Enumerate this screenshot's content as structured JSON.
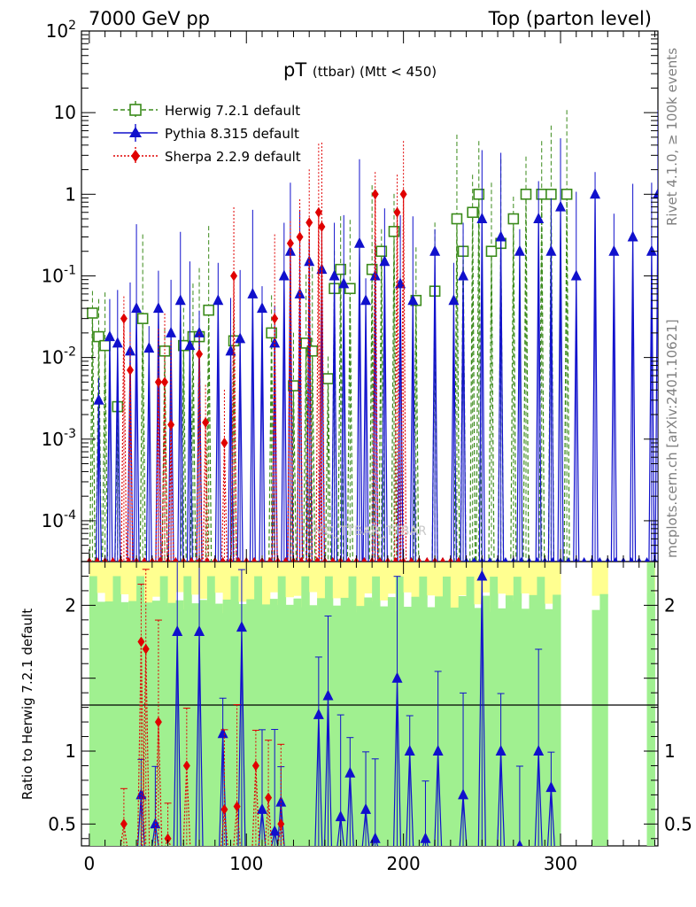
{
  "header": {
    "left": "7000 GeV pp",
    "right": "Top (parton level)"
  },
  "title": {
    "main": "pT",
    "sub": "(ttbar) (Mtt < 450)"
  },
  "side_labels": {
    "rivet": "Rivet 4.1.0, ≥ 100k events",
    "mcplots": "mcplots.cern.ch [arXiv:2401.10621]"
  },
  "watermark": "MC_TTBAR_TTBAR",
  "legend": [
    {
      "label": "Herwig 7.2.1 default",
      "color": "#3a8a1a"
    },
    {
      "label": "Pythia 8.315 default",
      "color": "#1010cc"
    },
    {
      "label": "Sherpa 2.2.9 default",
      "color": "#e00000"
    }
  ],
  "ratio_ylabel": "Ratio to Herwig 7.2.1 default",
  "chart_data": {
    "type": "line",
    "xlim": [
      -5,
      362
    ],
    "top_ylim_log10": [
      -4.5,
      2
    ],
    "bottom_ylim": [
      0.35,
      2.3
    ],
    "x_ticks": [
      "0",
      "100",
      "200",
      "300"
    ],
    "top_ytick_labels": [
      "10^2",
      "10",
      "1",
      "10^-1",
      "10^-2",
      "10^-3",
      "10^-4"
    ],
    "bottom_ytick_labels": [
      "0.5",
      "1",
      "2"
    ],
    "series": [
      {
        "name": "Herwig 7.2.1 default",
        "color": "#3a8a1a",
        "marker": "open-square",
        "x": [
          2,
          6,
          10,
          18,
          34,
          48,
          60,
          66,
          70,
          76,
          92,
          116,
          130,
          138,
          142,
          152,
          156,
          160,
          166,
          180,
          186,
          194,
          208,
          220,
          234,
          238,
          244,
          248,
          256,
          262,
          270,
          278,
          288,
          294,
          304
        ],
        "y": [
          0.035,
          0.018,
          0.014,
          0.0025,
          0.03,
          0.012,
          0.014,
          0.018,
          0.018,
          0.038,
          0.016,
          0.02,
          0.0045,
          0.015,
          0.012,
          0.0055,
          0.07,
          0.12,
          0.07,
          0.12,
          0.2,
          0.35,
          0.05,
          0.065,
          0.5,
          0.2,
          0.6,
          1.0,
          0.2,
          0.25,
          0.5,
          1.0,
          1.0,
          1.0,
          1.0
        ]
      },
      {
        "name": "Pythia 8.315 default",
        "color": "#1010cc",
        "marker": "filled-triangle",
        "x": [
          6,
          13,
          18,
          26,
          30,
          38,
          44,
          52,
          58,
          64,
          70,
          82,
          90,
          96,
          104,
          110,
          118,
          124,
          128,
          134,
          140,
          148,
          156,
          162,
          172,
          176,
          182,
          188,
          198,
          206,
          220,
          232,
          238,
          250,
          262,
          274,
          286,
          294,
          300,
          310,
          322,
          334,
          346,
          358,
          362
        ],
        "y": [
          0.003,
          0.018,
          0.015,
          0.012,
          0.04,
          0.013,
          0.04,
          0.02,
          0.05,
          0.014,
          0.02,
          0.05,
          0.012,
          0.017,
          0.06,
          0.04,
          0.015,
          0.1,
          0.2,
          0.06,
          0.15,
          0.12,
          0.1,
          0.08,
          0.25,
          0.05,
          0.1,
          0.15,
          0.08,
          0.05,
          0.2,
          0.05,
          0.1,
          0.5,
          0.3,
          0.2,
          0.5,
          0.2,
          0.7,
          0.1,
          1.0,
          0.2,
          0.3,
          0.2,
          1.0
        ]
      },
      {
        "name": "Sherpa 2.2.9 default",
        "color": "#e00000",
        "marker": "filled-diamond",
        "x": [
          22,
          26,
          44,
          48,
          52,
          70,
          74,
          86,
          92,
          118,
          128,
          134,
          140,
          146,
          148,
          182,
          196,
          200
        ],
        "y": [
          0.03,
          0.007,
          0.005,
          0.005,
          0.0015,
          0.011,
          0.0016,
          0.0009,
          0.1,
          0.03,
          0.25,
          0.3,
          0.45,
          0.6,
          0.4,
          1.0,
          0.6,
          1.0
        ]
      }
    ],
    "ratio_series": [
      {
        "name": "Pythia 8.315 default",
        "x": [
          33,
          42,
          56,
          70,
          85,
          97,
          110,
          118,
          122,
          146,
          152,
          160,
          166,
          176,
          182,
          196,
          204,
          214,
          222,
          238,
          250,
          262,
          274,
          286,
          294
        ],
        "y": [
          0.7,
          0.5,
          1.82,
          1.82,
          1.12,
          1.85,
          0.6,
          0.45,
          0.65,
          1.25,
          1.38,
          0.55,
          0.85,
          0.6,
          0.4,
          1.5,
          1.0,
          0.4,
          1.0,
          0.7,
          2.2,
          1.0,
          0.35,
          1.0,
          0.75
        ]
      },
      {
        "name": "Sherpa 2.2.9 default",
        "x": [
          22,
          33,
          36,
          44,
          50,
          62,
          86,
          94,
          106,
          114,
          122
        ],
        "y": [
          0.5,
          1.75,
          1.7,
          1.2,
          0.4,
          0.9,
          0.6,
          0.62,
          0.9,
          0.68,
          0.5
        ]
      }
    ]
  }
}
